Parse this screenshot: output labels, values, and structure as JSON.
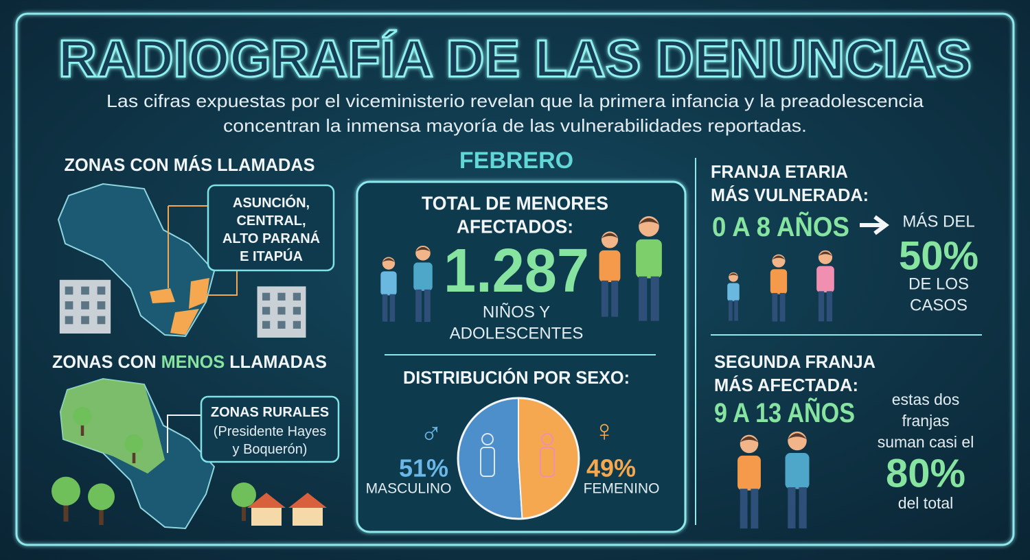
{
  "header": {
    "title": "RADIOGRAFÍA DE LAS DENUNCIAS",
    "subtitle_lines": [
      "Las cifras expuestas por el viceministerio revelan que la primera infancia y la preadolescencia",
      "concentran la inmensa mayoría de las vulnerabilidades reportadas."
    ]
  },
  "zones_more": {
    "title": "ZONAS CON MÁS LLAMADAS",
    "callout_lines": [
      "ASUNCIÓN,",
      "CENTRAL,",
      "ALTO PARANÁ",
      "E ITAPÚA"
    ]
  },
  "zones_less": {
    "title_parts": [
      "ZONAS CON ",
      "MENOS",
      " LLAMADAS"
    ],
    "callout_lines": [
      "ZONAS RURALES",
      "(Presidente Hayes",
      "y Boquerón)"
    ]
  },
  "month": "FEBRERO",
  "total": {
    "title_lines": [
      "TOTAL DE MENORES",
      "AFECTADOS:"
    ],
    "value": "1.287",
    "caption_lines": [
      "NIÑOS Y",
      "ADOLESCENTES"
    ]
  },
  "sex_distribution": {
    "type": "pie",
    "title": "DISTRIBUCIÓN POR SEXO:",
    "categories": [
      "MASCULINO",
      "FEMENINO"
    ],
    "values": [
      51,
      49
    ],
    "value_labels": [
      "51%",
      "49%"
    ],
    "colors": [
      "#4d8fca",
      "#f5a84f"
    ]
  },
  "age_primary": {
    "title_lines": [
      "FRANJA ETARIA",
      "MÁS VULNERADA:"
    ],
    "range": "0 A 8 AÑOS",
    "share_lines": [
      "MÁS DEL",
      "50%",
      "DE LOS",
      "CASOS"
    ]
  },
  "age_secondary": {
    "title_lines": [
      "SEGUNDA FRANJA",
      "MÁS AFECTADA:"
    ],
    "range": "9 A 13 AÑOS",
    "note_lines": [
      "estas dos",
      "franjas",
      "suman casi el",
      "80%",
      "del total"
    ]
  }
}
